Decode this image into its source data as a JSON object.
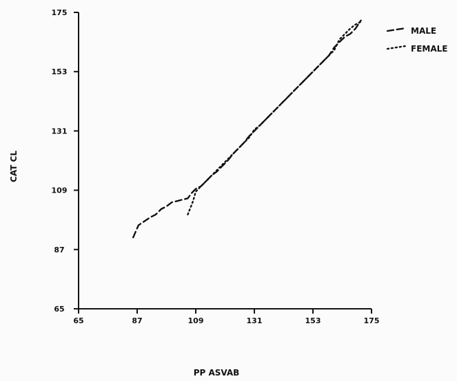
{
  "chart_data": {
    "type": "line",
    "title": "",
    "xlabel": "PP ASVAB",
    "ylabel": "CAT CL",
    "xlim": [
      65,
      175
    ],
    "ylim": [
      65,
      175
    ],
    "x_ticks": [
      65,
      87,
      109,
      131,
      153,
      175
    ],
    "y_ticks": [
      65,
      87,
      109,
      131,
      153,
      175
    ],
    "x_tick_labels": [
      "65",
      "87",
      "109",
      "131",
      "153",
      "175"
    ],
    "y_tick_labels": [
      "65",
      "87",
      "109",
      "131",
      "153",
      "175"
    ],
    "grid": false,
    "legend_position": "top-right",
    "series": [
      {
        "name": "MALE",
        "dash": "dashed",
        "color": "#111111",
        "x": [
          85.5,
          87.5,
          89,
          92,
          94,
          96,
          98,
          100,
          102,
          104,
          106,
          107.5,
          109,
          111,
          113,
          115,
          117,
          119,
          121,
          123,
          125,
          127,
          129,
          131,
          133,
          135,
          137,
          139,
          141,
          143,
          145,
          147,
          149,
          151,
          153,
          155,
          157,
          159,
          161,
          163,
          165,
          167,
          169,
          171
        ],
        "y": [
          91.5,
          96,
          97,
          99,
          100,
          102,
          103,
          104.5,
          105,
          105.5,
          106,
          108,
          109.5,
          110.5,
          112.5,
          114.5,
          116,
          118,
          120,
          122.5,
          124.5,
          126.5,
          129,
          131,
          133,
          135,
          137,
          139,
          141,
          143,
          145,
          147,
          149,
          151,
          153,
          155,
          157,
          159,
          162,
          164,
          166,
          167,
          169,
          172
        ]
      },
      {
        "name": "FEMALE",
        "dash": "dotted",
        "color": "#111111",
        "x": [
          106,
          107,
          108,
          109,
          111,
          113,
          115,
          117,
          119,
          121,
          123,
          125,
          127,
          129,
          131,
          133,
          135,
          137,
          139,
          141,
          143,
          145,
          147,
          149,
          151,
          153,
          155,
          157,
          159,
          161,
          163,
          165,
          167,
          169,
          171
        ],
        "y": [
          100,
          102.5,
          105,
          108.5,
          110.5,
          112.5,
          114.5,
          116.5,
          118.5,
          120.5,
          122.5,
          124.5,
          126.5,
          128.5,
          131.5,
          133,
          135,
          137,
          139,
          141,
          143,
          145,
          147,
          149,
          151,
          153,
          155,
          157,
          159,
          161,
          165,
          167,
          169,
          170.5,
          171.5
        ]
      }
    ]
  }
}
